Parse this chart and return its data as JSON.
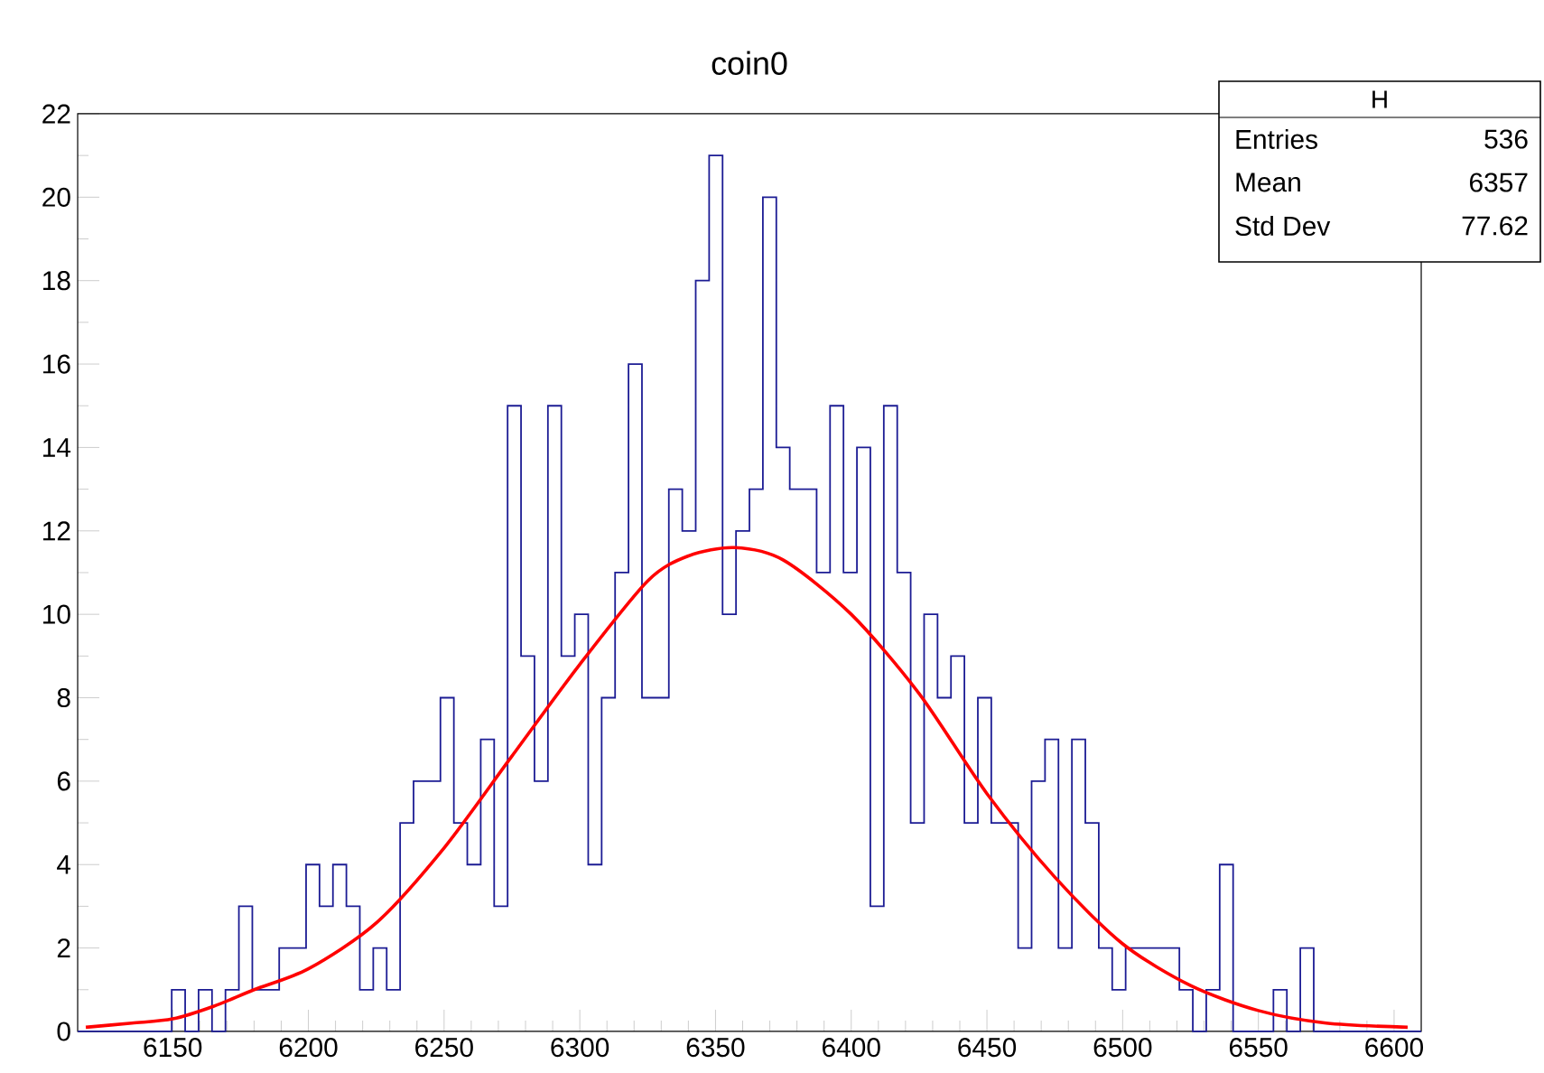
{
  "chart_data": {
    "type": "histogram",
    "title": "coin0",
    "xlim": [
      6115,
      6610
    ],
    "ylim": [
      0,
      22
    ],
    "xticks": [
      6150,
      6200,
      6250,
      6300,
      6350,
      6400,
      6450,
      6500,
      6550,
      6600
    ],
    "yticks": [
      0,
      2,
      4,
      6,
      8,
      10,
      12,
      14,
      16,
      18,
      20,
      22
    ],
    "grid": false,
    "annotations": [
      "H",
      "Entries",
      "536",
      "Mean",
      "6357",
      "Std Dev",
      "77.62"
    ],
    "series": [
      {
        "color": "#1c1c94",
        "bins": [
          6115,
          6119.95,
          6124.9,
          6129.85,
          6134.8,
          6139.75,
          6144.7,
          6149.65,
          6154.6,
          6159.55,
          6164.5,
          6169.45,
          6174.4,
          6179.35,
          6184.3,
          6189.25,
          6194.2,
          6199.15,
          6204.1,
          6209.05,
          6214,
          6218.95,
          6223.9,
          6228.85,
          6233.8,
          6238.75,
          6243.7,
          6248.65,
          6253.6,
          6258.55,
          6263.5,
          6268.45,
          6273.4,
          6278.35,
          6283.3,
          6288.25,
          6293.2,
          6298.15,
          6303.1,
          6308.05,
          6313,
          6317.95,
          6322.9,
          6327.85,
          6332.8,
          6337.75,
          6342.7,
          6347.65,
          6352.6,
          6357.55,
          6362.5,
          6367.45,
          6372.4,
          6377.35,
          6382.3,
          6387.25,
          6392.2,
          6397.15,
          6402.1,
          6407.05,
          6412,
          6416.95,
          6421.9,
          6426.85,
          6431.8,
          6436.75,
          6441.7,
          6446.65,
          6451.6,
          6456.55,
          6461.5,
          6466.45,
          6471.4,
          6476.35,
          6481.3,
          6486.25,
          6491.2,
          6496.15,
          6501.1,
          6506.05,
          6511,
          6515.95,
          6520.9,
          6525.85,
          6530.8,
          6535.75,
          6540.7,
          6545.65,
          6550.6,
          6555.55,
          6560.5,
          6565.45,
          6570.4,
          6575.35,
          6580.3,
          6585.25,
          6590.2,
          6595.15,
          6600.1,
          6605.05,
          6610
        ],
        "values": [
          0,
          0,
          0,
          0,
          0,
          0,
          0,
          1,
          0,
          1,
          0,
          1,
          3,
          1,
          1,
          2,
          2,
          4,
          3,
          4,
          3,
          1,
          2,
          1,
          5,
          6,
          6,
          8,
          5,
          4,
          7,
          3,
          15,
          9,
          6,
          15,
          9,
          10,
          4,
          8,
          11,
          16,
          8,
          8,
          13,
          12,
          18,
          21,
          10,
          12,
          13,
          20,
          14,
          13,
          13,
          11,
          15,
          11,
          14,
          3,
          15,
          11,
          5,
          10,
          8,
          9,
          5,
          8,
          5,
          5,
          2,
          6,
          7,
          2,
          7,
          5,
          2,
          1,
          2,
          2,
          2,
          2,
          1,
          0,
          1,
          4,
          0,
          0,
          0,
          1,
          0,
          2,
          0,
          0,
          0,
          0,
          0,
          0,
          0,
          0
        ]
      },
      {
        "type": "line",
        "color": "#ff0000",
        "x": [
          6118,
          6135,
          6150,
          6165,
          6180,
          6200,
          6225,
          6250,
          6275,
          6300,
          6325,
          6340,
          6357,
          6375,
          6400,
          6425,
          6450,
          6475,
          6500,
          6525,
          6550,
          6575,
          6605
        ],
        "values": [
          0.1,
          0.2,
          0.3,
          0.6,
          1.0,
          1.5,
          2.6,
          4.4,
          6.6,
          8.8,
          10.8,
          11.4,
          11.6,
          11.3,
          10.0,
          8.1,
          5.7,
          3.7,
          2.1,
          1.1,
          0.5,
          0.2,
          0.1
        ]
      }
    ]
  }
}
